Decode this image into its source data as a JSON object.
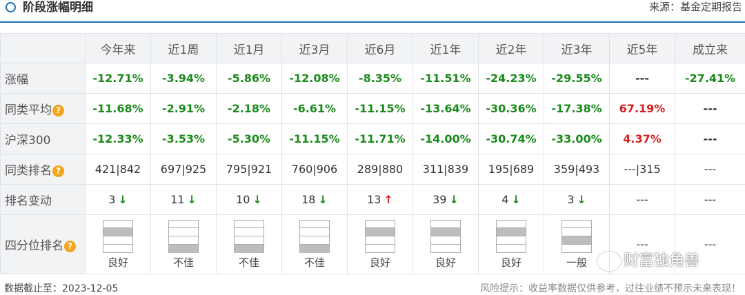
{
  "header": {
    "title": "阶段涨幅明细",
    "source": "来源：基金定期报告"
  },
  "columns": [
    "今年来",
    "近1周",
    "近1月",
    "近3月",
    "近6月",
    "近1年",
    "近2年",
    "近3年",
    "近5年",
    "成立来"
  ],
  "rows": {
    "gain": {
      "label": "涨幅",
      "values": [
        "-12.71%",
        "-3.94%",
        "-5.86%",
        "-12.08%",
        "-8.35%",
        "-11.51%",
        "-24.23%",
        "-29.55%",
        "---",
        "-27.41%"
      ],
      "colors": [
        "green",
        "green",
        "green",
        "green",
        "green",
        "green",
        "green",
        "green",
        "plain",
        "green"
      ]
    },
    "peer_avg": {
      "label": "同类平均",
      "values": [
        "-11.68%",
        "-2.91%",
        "-2.18%",
        "-6.61%",
        "-11.15%",
        "-13.64%",
        "-30.36%",
        "-17.38%",
        "67.19%",
        "---"
      ],
      "colors": [
        "green",
        "green",
        "green",
        "green",
        "green",
        "green",
        "green",
        "green",
        "red",
        "plain"
      ]
    },
    "hs300": {
      "label": "沪深300",
      "values": [
        "-12.33%",
        "-3.53%",
        "-5.30%",
        "-11.15%",
        "-11.71%",
        "-14.00%",
        "-30.74%",
        "-33.00%",
        "4.37%",
        "---"
      ],
      "colors": [
        "green",
        "green",
        "green",
        "green",
        "green",
        "green",
        "green",
        "green",
        "red",
        "plain"
      ]
    },
    "peer_rank": {
      "label": "同类排名",
      "values": [
        "421|842",
        "697|925",
        "795|921",
        "760|906",
        "289|880",
        "311|839",
        "195|689",
        "359|493",
        "---|315",
        "---"
      ]
    },
    "rank_change": {
      "label": "排名变动",
      "values": [
        "3",
        "11",
        "10",
        "18",
        "13",
        "39",
        "4",
        "3",
        "---",
        "---"
      ],
      "arrows": [
        "down",
        "down",
        "down",
        "down",
        "up",
        "down",
        "down",
        "down",
        "",
        ""
      ]
    },
    "quartile": {
      "label": "四分位排名",
      "labels": [
        "良好",
        "不佳",
        "不佳",
        "不佳",
        "良好",
        "良好",
        "良好",
        "一般"
      ],
      "levels": [
        2,
        4,
        4,
        4,
        2,
        2,
        2,
        3
      ],
      "empty": [
        "---",
        "---"
      ]
    }
  },
  "help_icon": "question-circle-icon",
  "footer": {
    "date": "数据截止至：2023-12-05",
    "risk": "风险提示：收益率数据仅供参考，过往业绩不预示未来表现！"
  },
  "watermark": "财富独角兽"
}
